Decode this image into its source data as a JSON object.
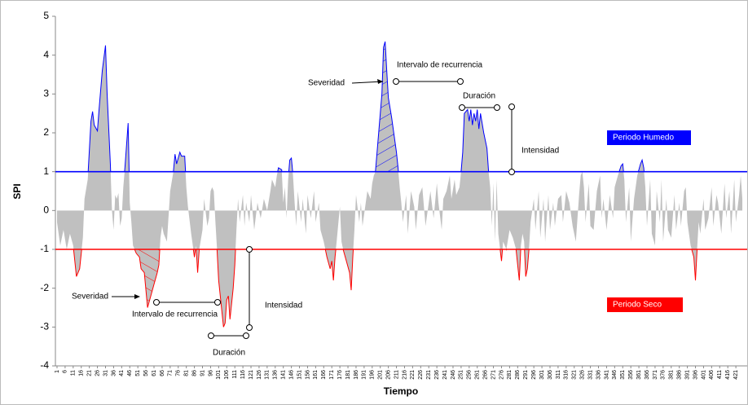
{
  "chart_data": {
    "type": "area",
    "ylabel": "SPI",
    "xlabel": "Tiempo",
    "xlim": [
      0,
      428
    ],
    "ylim": [
      -4,
      5
    ],
    "yticks": [
      -4,
      -3,
      -2,
      -1,
      0,
      1,
      2,
      3,
      4,
      5
    ],
    "xticks": [
      1,
      6,
      11,
      16,
      21,
      26,
      31,
      36,
      41,
      46,
      51,
      56,
      61,
      66,
      71,
      76,
      81,
      86,
      91,
      96,
      101,
      106,
      111,
      116,
      121,
      126,
      131,
      136,
      141,
      146,
      151,
      156,
      161,
      166,
      171,
      176,
      181,
      186,
      191,
      196,
      201,
      206,
      211,
      216,
      221,
      226,
      231,
      236,
      241,
      246,
      251,
      256,
      261,
      266,
      271,
      276,
      281,
      286,
      291,
      296,
      301,
      306,
      311,
      316,
      321,
      326,
      331,
      336,
      341,
      346,
      351,
      356,
      361,
      366,
      371,
      376,
      381,
      386,
      391,
      396,
      401,
      406,
      411,
      416,
      421
    ],
    "color": "#c0c0c0",
    "regions": [
      {
        "name": "Periodo Humedo",
        "value": 1,
        "color": "#0000ff"
      },
      {
        "name": "Periodo Seco",
        "value": -1,
        "color": "#ff0000"
      }
    ],
    "annotations": [
      "Severidad",
      "Intervalo de recurrencia",
      "Duración",
      "Intensidad",
      "Severidad",
      "Intervalo de recurrencia",
      "Intensidad",
      "Duración"
    ],
    "x": [
      1,
      3,
      5,
      7,
      9,
      11,
      13,
      15,
      17,
      18,
      20,
      22,
      23,
      24,
      26,
      27,
      29,
      31,
      32,
      34,
      35,
      36,
      37,
      38,
      39,
      40,
      41,
      42,
      43,
      45,
      46,
      47,
      48,
      50,
      52,
      53,
      55,
      57,
      59,
      61,
      63,
      64,
      65,
      66,
      67,
      69,
      71,
      73,
      74,
      75,
      77,
      78,
      80,
      81,
      82,
      84,
      86,
      87,
      88,
      89,
      91,
      92,
      94,
      95,
      96,
      97,
      98,
      99,
      100,
      101,
      103,
      104,
      105,
      106,
      107,
      108,
      109,
      110,
      111,
      112,
      113,
      114,
      116,
      117,
      118,
      120,
      121,
      123,
      125,
      127,
      129,
      131,
      133,
      134,
      136,
      137,
      138,
      140,
      141,
      142,
      143,
      144,
      145,
      146,
      147,
      148,
      149,
      150,
      152,
      153,
      155,
      156,
      158,
      160,
      161,
      163,
      164,
      166,
      168,
      170,
      171,
      172,
      173,
      174,
      176,
      177,
      178,
      180,
      182,
      183,
      184,
      185,
      186,
      188,
      189,
      190,
      192,
      193,
      195,
      196,
      197,
      198,
      200,
      201,
      202,
      203,
      204,
      205,
      206,
      208,
      210,
      211,
      212,
      213,
      214,
      215,
      217,
      218,
      220,
      222,
      223,
      225,
      227,
      229,
      231,
      232,
      234,
      236,
      237,
      239,
      240,
      242,
      244,
      245,
      247,
      248,
      250,
      251,
      252,
      253,
      255,
      256,
      257,
      258,
      259,
      260,
      261,
      262,
      263,
      265,
      267,
      268,
      269,
      270,
      271,
      272,
      273,
      274,
      276,
      277,
      279,
      281,
      283,
      285,
      286,
      287,
      288,
      289,
      290,
      291,
      292,
      293,
      294,
      296,
      297,
      299,
      300,
      302,
      303,
      305,
      306,
      308,
      309,
      311,
      313,
      314,
      316,
      318,
      320,
      322,
      324,
      325,
      326,
      327,
      328,
      330,
      331,
      333,
      335,
      337,
      338,
      339,
      341,
      343,
      345,
      346,
      348,
      350,
      351,
      352,
      353,
      355,
      356,
      358,
      360,
      362,
      363,
      364,
      365,
      366,
      368,
      369,
      371,
      372,
      374,
      375,
      376,
      378,
      379,
      381,
      383,
      384,
      386,
      387,
      389,
      390,
      391,
      393,
      395,
      396,
      397,
      398,
      399,
      401,
      402,
      404,
      406,
      407,
      409,
      410,
      412,
      414,
      415,
      417,
      418,
      420,
      421,
      423,
      424,
      425
    ],
    "values": [
      -0.3,
      -0.9,
      -0.5,
      -1.0,
      -0.6,
      -0.9,
      -1.7,
      -1.5,
      -0.7,
      0.3,
      0.8,
      2.3,
      2.55,
      2.2,
      2.05,
      2.6,
      3.6,
      4.25,
      3.0,
      1.2,
      0,
      -0.5,
      0.4,
      0.3,
      0.45,
      -0.4,
      -0.2,
      0.6,
      1.1,
      2.25,
      0.2,
      -0.3,
      -0.9,
      -1.1,
      -1.2,
      -1.5,
      -1.6,
      -2.5,
      -2.2,
      -1.9,
      -1.6,
      -1.4,
      -0.7,
      -0.4,
      -0.6,
      -0.8,
      0.5,
      1.0,
      1.45,
      1.2,
      1.5,
      1.4,
      1.4,
      0.6,
      0.1,
      -0.6,
      -1.2,
      -0.9,
      -1.6,
      -1.0,
      -0.5,
      0.3,
      -0.4,
      -0.2,
      0.5,
      0.6,
      0.5,
      -0.3,
      -1.0,
      -1.8,
      -2.6,
      -3.0,
      -2.9,
      -2.3,
      -2.2,
      -2.8,
      -2.4,
      -2.0,
      -1.4,
      -0.5,
      0.3,
      -0.3,
      0.4,
      -0.4,
      0.2,
      -0.3,
      0.4,
      -0.5,
      0.2,
      -0.2,
      0.3,
      0,
      0.5,
      0.8,
      0.6,
      0.9,
      1.1,
      1.05,
      0.2,
      0.6,
      -0.2,
      0.8,
      1.3,
      1.35,
      0.9,
      0.2,
      -0.4,
      0.5,
      -0.3,
      0.3,
      -0.6,
      0.4,
      -0.2,
      0.5,
      -0.3,
      0.2,
      -0.5,
      -0.8,
      -1.2,
      -1.5,
      -1.3,
      -1.8,
      -1.2,
      -0.8,
      0.1,
      -0.8,
      -1.0,
      -1.3,
      -1.6,
      -2.05,
      -1.2,
      -0.5,
      0.4,
      -0.3,
      0.2,
      -0.4,
      0.2,
      0.5,
      0.3,
      0.7,
      0.9,
      1.0,
      2.0,
      2.5,
      3.0,
      4.2,
      4.35,
      3.6,
      2.9,
      2.4,
      1.8,
      1.5,
      1.1,
      0.6,
      0.2,
      -0.3,
      0.4,
      -0.6,
      0.5,
      0.1,
      -0.5,
      0.4,
      0.6,
      -0.4,
      0.2,
      0.5,
      -0.2,
      0.7,
      0.2,
      -0.5,
      0.3,
      0.5,
      0.9,
      0.3,
      0.8,
      0.4,
      0.6,
      1.0,
      1.5,
      2.5,
      2.6,
      2.3,
      2.6,
      2.2,
      2.5,
      2.3,
      2.6,
      2.1,
      2.5,
      2.0,
      1.6,
      1.0,
      0.6,
      -0.4,
      0.7,
      -0.8,
      0.8,
      -0.6,
      -1.3,
      -0.8,
      -1.0,
      -0.5,
      -0.7,
      -1.0,
      -1.4,
      -1.8,
      -0.9,
      -0.6,
      -0.8,
      -1.7,
      -1.5,
      -1.0,
      -0.3,
      0.3,
      -0.5,
      0.5,
      -0.7,
      0.3,
      -0.8,
      0.4,
      -0.5,
      0.2,
      -0.4,
      0.3,
      0.4,
      -0.3,
      0.5,
      0.2,
      -0.4,
      -0.8,
      0.4,
      0.9,
      1.0,
      0.6,
      -0.3,
      0.7,
      -0.4,
      -0.5,
      0.5,
      0.9,
      -0.2,
      0.3,
      -0.5,
      0.4,
      -0.2,
      0.6,
      0.9,
      1.15,
      1.2,
      0.8,
      -0.3,
      0.6,
      -0.8,
      0.3,
      0.9,
      1.2,
      1.3,
      1.1,
      0.6,
      -0.4,
      0.8,
      -0.6,
      -0.9,
      0.5,
      -0.3,
      0.8,
      -0.8,
      0.3,
      -0.5,
      -0.7,
      0.4,
      -0.5,
      0.2,
      -0.4,
      0.5,
      0.6,
      -0.3,
      -0.9,
      -1.2,
      -1.8,
      -1.0,
      -0.3,
      -0.6,
      0.3,
      -0.5,
      -0.2,
      0.6,
      -0.4,
      0.4,
      0.2,
      -0.6,
      0.7,
      -0.2,
      0.5,
      -0.6,
      0.8,
      -0.3,
      0.4,
      0.9,
      0.3
    ]
  }
}
